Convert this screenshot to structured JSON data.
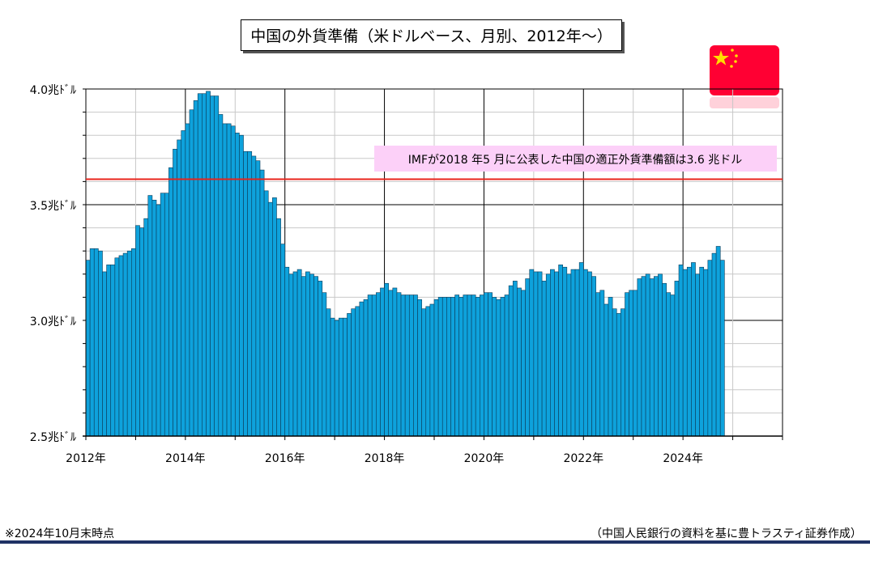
{
  "title": "中国の外貨準備（米ドルベース、月別、2012年～）",
  "annotation": "IMFが2018 年5 月に公表した中国の適正外貨準備額は3.6 兆ドル",
  "footnote_left": "※2024年10月末時点",
  "footnote_right": "（中国人民銀行の資料を基に豊トラスティ証券作成）",
  "flag_icon": "china-flag-icon",
  "colors": {
    "bar": "#0ea2dc",
    "bar_edge": "#0b3c5a",
    "reference_line": "#e8241c",
    "annotation_bg": "#fcd0f8",
    "flag_red": "#ff0033",
    "flag_star": "#ffde00",
    "rule": "#1f3264"
  },
  "chart_data": {
    "type": "bar",
    "y_unit": "兆ドル",
    "ylim": [
      2.5,
      4.0
    ],
    "yticks": [
      "4.0兆ﾄﾞﾙ",
      "3.5兆ﾄﾞﾙ",
      "3.0兆ﾄﾞﾙ",
      "2.5兆ﾄﾞﾙ"
    ],
    "xlim": [
      "2012-01",
      "2025-12"
    ],
    "xticks": [
      "2012年",
      "2014年",
      "2016年",
      "2018年",
      "2020年",
      "2022年",
      "2024年"
    ],
    "reference_line": 3.61,
    "grid": true,
    "x_start": "2012-01",
    "x_end": "2024-10",
    "values": [
      3.26,
      3.31,
      3.31,
      3.3,
      3.21,
      3.24,
      3.24,
      3.27,
      3.28,
      3.29,
      3.3,
      3.31,
      3.41,
      3.4,
      3.44,
      3.54,
      3.52,
      3.5,
      3.55,
      3.55,
      3.66,
      3.74,
      3.78,
      3.82,
      3.85,
      3.91,
      3.95,
      3.98,
      3.98,
      3.99,
      3.97,
      3.97,
      3.89,
      3.85,
      3.85,
      3.84,
      3.81,
      3.8,
      3.73,
      3.73,
      3.71,
      3.69,
      3.65,
      3.56,
      3.51,
      3.53,
      3.44,
      3.33,
      3.23,
      3.2,
      3.21,
      3.22,
      3.19,
      3.21,
      3.2,
      3.19,
      3.17,
      3.12,
      3.05,
      3.01,
      3.0,
      3.01,
      3.01,
      3.03,
      3.05,
      3.06,
      3.08,
      3.09,
      3.11,
      3.11,
      3.12,
      3.14,
      3.16,
      3.13,
      3.14,
      3.12,
      3.11,
      3.11,
      3.11,
      3.11,
      3.09,
      3.05,
      3.06,
      3.07,
      3.09,
      3.1,
      3.1,
      3.1,
      3.1,
      3.11,
      3.1,
      3.11,
      3.11,
      3.11,
      3.1,
      3.11,
      3.12,
      3.12,
      3.1,
      3.09,
      3.1,
      3.11,
      3.15,
      3.17,
      3.14,
      3.13,
      3.18,
      3.22,
      3.21,
      3.21,
      3.17,
      3.2,
      3.22,
      3.21,
      3.24,
      3.23,
      3.2,
      3.22,
      3.22,
      3.25,
      3.22,
      3.21,
      3.19,
      3.12,
      3.13,
      3.07,
      3.1,
      3.05,
      3.03,
      3.05,
      3.12,
      3.13,
      3.13,
      3.18,
      3.19,
      3.2,
      3.18,
      3.19,
      3.2,
      3.16,
      3.12,
      3.11,
      3.17,
      3.24,
      3.22,
      3.23,
      3.25,
      3.2,
      3.23,
      3.22,
      3.26,
      3.29,
      3.32,
      3.26
    ]
  }
}
